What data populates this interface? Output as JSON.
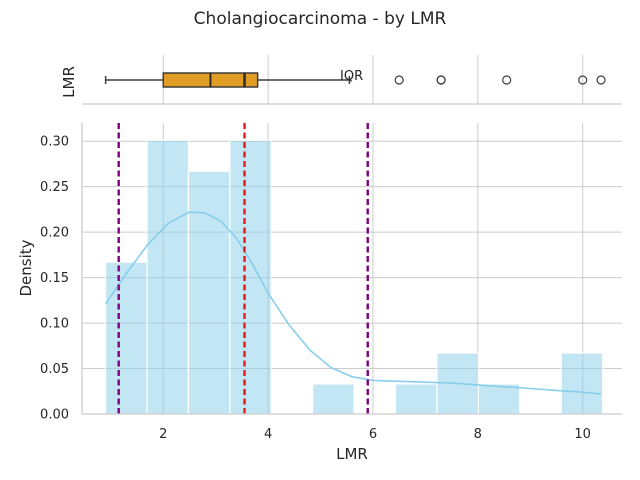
{
  "title": "Cholangiocarcinoma - by LMR",
  "colors": {
    "hist_fill": "#87ceeb",
    "kde": "#87ceeb",
    "box_fill": "#e09d25",
    "box_edge": "#3d3d3d",
    "median_line": "#262626",
    "mean_line": "#e41a1c",
    "pct_line": "#800080",
    "grid": "#cccccc",
    "spine": "#cccccc"
  },
  "chart_data": [
    {
      "type": "box",
      "ylabel": "LMR",
      "annotation": "IQR",
      "stats": {
        "whisker_low": 0.9,
        "q1": 2.0,
        "median": 2.9,
        "mean": 3.55,
        "q3": 3.8,
        "whisker_high": 5.55
      },
      "outliers": [
        6.5,
        7.3,
        7.3,
        8.55,
        10.0,
        10.35
      ]
    },
    {
      "type": "histogram",
      "xlabel": "LMR",
      "ylabel": "Density",
      "xlim": [
        0.45,
        10.75
      ],
      "ylim": [
        0,
        0.32
      ],
      "xticks": [
        2,
        4,
        6,
        8,
        10
      ],
      "yticks": [
        0.0,
        0.05,
        0.1,
        0.15,
        0.2,
        0.25,
        0.3
      ],
      "ytick_labels": [
        "0.00",
        "0.05",
        "0.10",
        "0.15",
        "0.20",
        "0.25",
        "0.30"
      ],
      "bins": [
        {
          "x0": 0.9,
          "x1": 1.69,
          "density": 0.167
        },
        {
          "x0": 1.69,
          "x1": 2.48,
          "density": 0.301
        },
        {
          "x0": 2.48,
          "x1": 3.27,
          "density": 0.267
        },
        {
          "x0": 3.27,
          "x1": 4.06,
          "density": 0.301
        },
        {
          "x0": 4.06,
          "x1": 4.85,
          "density": 0.0
        },
        {
          "x0": 4.85,
          "x1": 5.64,
          "density": 0.033
        },
        {
          "x0": 5.64,
          "x1": 6.43,
          "density": 0.0
        },
        {
          "x0": 6.43,
          "x1": 7.22,
          "density": 0.033
        },
        {
          "x0": 7.22,
          "x1": 8.01,
          "density": 0.067
        },
        {
          "x0": 8.01,
          "x1": 8.8,
          "density": 0.033
        },
        {
          "x0": 8.8,
          "x1": 9.59,
          "density": 0.0
        },
        {
          "x0": 9.59,
          "x1": 10.38,
          "density": 0.067
        }
      ],
      "kde": {
        "x": [
          0.9,
          1.3,
          1.7,
          2.1,
          2.5,
          2.8,
          3.1,
          3.4,
          3.7,
          4.0,
          4.4,
          4.8,
          5.2,
          5.6,
          6.0,
          6.5,
          7.0,
          7.5,
          8.0,
          8.5,
          9.0,
          9.5,
          10.0,
          10.35
        ],
        "y": [
          0.121,
          0.155,
          0.186,
          0.21,
          0.222,
          0.221,
          0.212,
          0.193,
          0.165,
          0.133,
          0.098,
          0.07,
          0.051,
          0.041,
          0.037,
          0.036,
          0.035,
          0.034,
          0.032,
          0.03,
          0.028,
          0.026,
          0.024,
          0.022
        ]
      },
      "vlines": [
        {
          "name": "p10",
          "x": 1.15,
          "color": "#800080"
        },
        {
          "name": "mean",
          "x": 3.55,
          "color": "#e41a1c"
        },
        {
          "name": "p90",
          "x": 5.9,
          "color": "#800080"
        }
      ]
    }
  ]
}
